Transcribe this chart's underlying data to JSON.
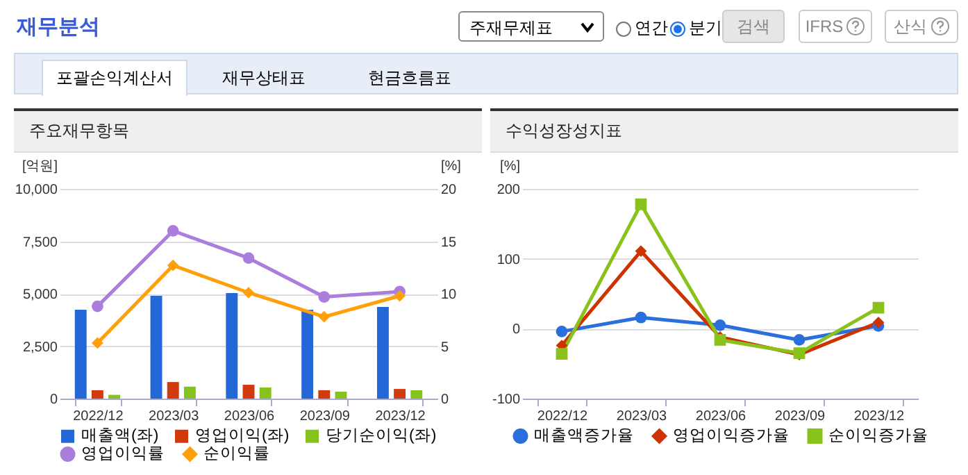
{
  "chart_data": [
    {
      "type": "other",
      "title": "재무분석",
      "annotations": [
        "주재무제표",
        "연간",
        "분기",
        "검색",
        "IFRS",
        "산식",
        "포괄손익계산서",
        "재무상태표",
        "현금흐름표"
      ]
    },
    {
      "type": "bar",
      "title": "주요재무항목",
      "categories": [
        "2022/12",
        "2023/03",
        "2023/06",
        "2023/09",
        "2023/12"
      ],
      "ylabel": "[억원]",
      "y2label": "[%]",
      "ylim": [
        0,
        10000
      ],
      "yticks": [
        0,
        {
          "value": 2500,
          "label": "2,500"
        },
        {
          "value": 5000,
          "label": "5,000"
        },
        {
          "value": 7500,
          "label": "7,500"
        },
        {
          "value": 10000,
          "label": "10,000"
        }
      ],
      "y2lim": [
        0,
        20
      ],
      "y2ticks": [
        0,
        5,
        10,
        15,
        20
      ],
      "grid": "y",
      "legend": "bottom",
      "series": [
        {
          "name": "매출액(좌)",
          "color": "#2468d8",
          "values": [
            4240,
            4900,
            5030,
            4240,
            4370
          ]
        },
        {
          "name": "영업이익(좌)",
          "color": "#d03a0c",
          "values": [
            400,
            790,
            660,
            400,
            460
          ]
        },
        {
          "name": "당기순이익(좌)",
          "color": "#86c21c",
          "values": [
            180,
            570,
            530,
            330,
            400
          ]
        },
        {
          "name": "영업이익률",
          "type": "line",
          "axis": "y2",
          "marker": "circle",
          "color": "#a97fdb",
          "values": [
            8.8,
            16.0,
            13.4,
            9.7,
            10.2
          ]
        },
        {
          "name": "순이익률",
          "type": "line",
          "axis": "y2",
          "marker": "diamond",
          "color": "#ff9f0a",
          "values": [
            5.3,
            12.7,
            10.1,
            7.8,
            9.8
          ]
        }
      ]
    },
    {
      "type": "line",
      "title": "수익성장성지표",
      "categories": [
        "2022/12",
        "2023/03",
        "2023/06",
        "2023/09",
        "2023/12"
      ],
      "ylabel": "[%]",
      "ylim": [
        -100,
        200
      ],
      "yticks": [
        -100,
        0,
        100,
        200
      ],
      "grid": "y",
      "legend": "bottom",
      "series": [
        {
          "name": "매출액증가율",
          "marker": "circle",
          "color": "#2a6fdc",
          "values": [
            -4,
            16,
            5,
            -16,
            4
          ]
        },
        {
          "name": "영업이익증가율",
          "marker": "diamond",
          "color": "#cc3300",
          "values": [
            -24,
            111,
            -12,
            -37,
            9
          ]
        },
        {
          "name": "순이익증가율",
          "marker": "square",
          "color": "#88c21a",
          "values": [
            -36,
            178,
            -16,
            -35,
            30
          ]
        }
      ]
    }
  ]
}
